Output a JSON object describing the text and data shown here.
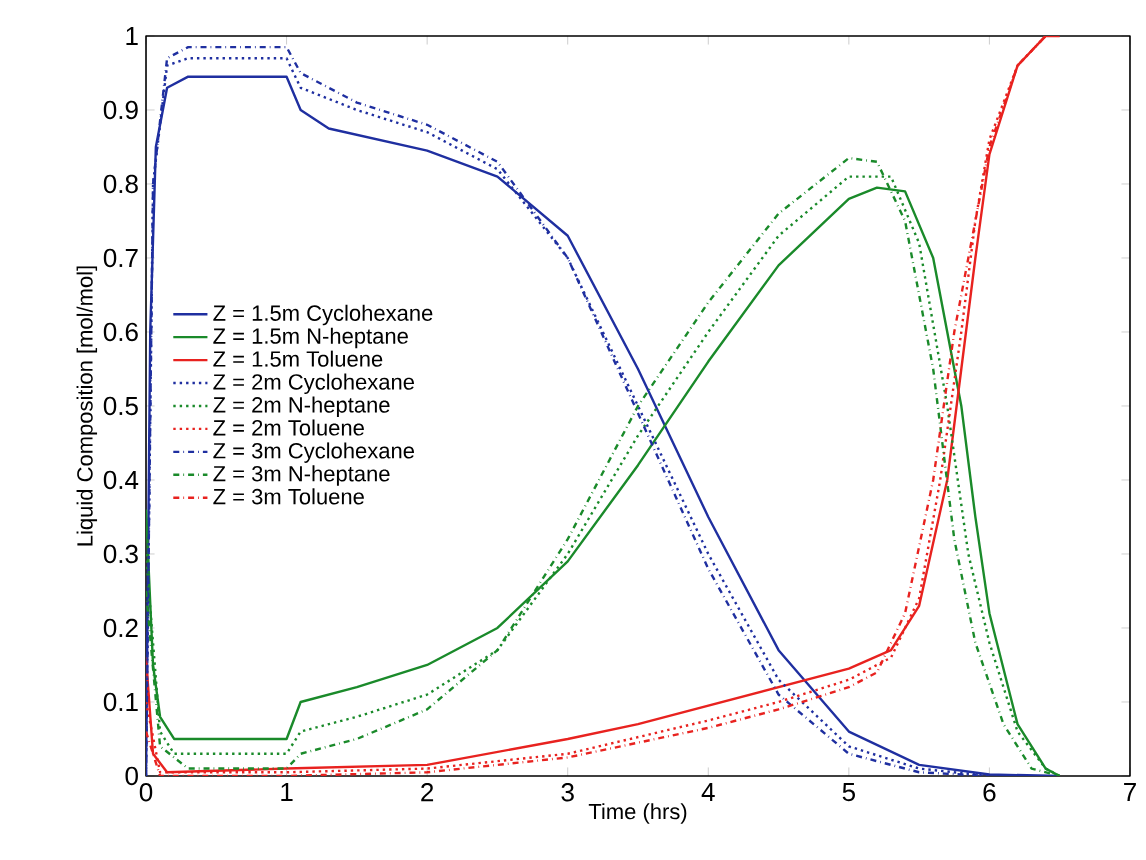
{
  "chart_data": {
    "type": "line",
    "xlabel": "Time (hrs)",
    "ylabel": "Liquid Composition [mol/mol]",
    "xlim": [
      0,
      7
    ],
    "ylim": [
      0,
      1
    ],
    "xticks": [
      0,
      1,
      2,
      3,
      4,
      5,
      6,
      7
    ],
    "yticks": [
      0,
      0.1,
      0.2,
      0.3,
      0.4,
      0.5,
      0.6,
      0.7,
      0.8,
      0.9,
      1
    ],
    "legend": "left",
    "grid": false,
    "marker": "none",
    "series": [
      {
        "name": "Z = 1.5m Cyclohexane",
        "color": "#1f2fa0",
        "line_style": "solid",
        "x": [
          0,
          0.03,
          0.07,
          0.15,
          0.3,
          1,
          1.1,
          1.3,
          2,
          2.5,
          3,
          3.5,
          4,
          4.5,
          5,
          5.5,
          6,
          6.5
        ],
        "values": [
          0,
          0.6,
          0.85,
          0.93,
          0.945,
          0.945,
          0.9,
          0.875,
          0.845,
          0.81,
          0.73,
          0.55,
          0.35,
          0.17,
          0.06,
          0.015,
          0.002,
          0
        ]
      },
      {
        "name": "Z = 1.5m N-heptane",
        "color": "#1a8a2a",
        "line_style": "solid",
        "x": [
          0,
          0.05,
          0.1,
          0.2,
          1,
          1.1,
          1.5,
          2,
          2.5,
          3,
          3.5,
          4,
          4.5,
          5,
          5.2,
          5.4,
          5.6,
          5.8,
          5.9,
          6,
          6.2,
          6.4,
          6.5
        ],
        "values": [
          0.36,
          0.15,
          0.08,
          0.05,
          0.05,
          0.1,
          0.12,
          0.15,
          0.2,
          0.29,
          0.42,
          0.56,
          0.69,
          0.78,
          0.795,
          0.79,
          0.7,
          0.5,
          0.35,
          0.22,
          0.07,
          0.01,
          0
        ]
      },
      {
        "name": "Z = 1.5m Toluene",
        "color": "#e8221f",
        "line_style": "solid",
        "x": [
          0,
          0.05,
          0.15,
          1,
          2,
          3,
          3.5,
          4,
          4.5,
          5,
          5.3,
          5.5,
          5.7,
          5.8,
          5.9,
          6,
          6.2,
          6.4,
          6.5
        ],
        "values": [
          0.16,
          0.03,
          0.005,
          0.01,
          0.015,
          0.05,
          0.07,
          0.095,
          0.12,
          0.145,
          0.17,
          0.23,
          0.4,
          0.55,
          0.7,
          0.84,
          0.96,
          1,
          1
        ]
      },
      {
        "name": "Z = 2m Cyclohexane",
        "color": "#1f2fa0",
        "line_style": "dotted",
        "x": [
          0,
          0.05,
          0.15,
          0.3,
          1,
          1.1,
          1.5,
          2,
          2.5,
          3,
          3.5,
          4,
          4.5,
          5,
          5.5,
          6
        ],
        "values": [
          0,
          0.8,
          0.96,
          0.97,
          0.97,
          0.93,
          0.9,
          0.87,
          0.82,
          0.7,
          0.5,
          0.3,
          0.13,
          0.04,
          0.01,
          0
        ]
      },
      {
        "name": "Z = 2m N-heptane",
        "color": "#1a8a2a",
        "line_style": "dotted",
        "x": [
          0,
          0.1,
          0.2,
          1,
          1.1,
          1.5,
          2,
          2.5,
          3,
          3.5,
          4,
          4.5,
          5,
          5.3,
          5.5,
          5.7,
          5.85,
          6,
          6.2,
          6.4,
          6.5
        ],
        "values": [
          0.3,
          0.06,
          0.03,
          0.03,
          0.06,
          0.08,
          0.11,
          0.17,
          0.3,
          0.46,
          0.6,
          0.73,
          0.81,
          0.81,
          0.72,
          0.5,
          0.3,
          0.18,
          0.06,
          0.01,
          0
        ]
      },
      {
        "name": "Z = 2m Toluene",
        "color": "#e8221f",
        "line_style": "dotted",
        "x": [
          0,
          0.1,
          1,
          2,
          3,
          4,
          4.5,
          5,
          5.3,
          5.5,
          5.65,
          5.8,
          5.9,
          6,
          6.2,
          6.4
        ],
        "values": [
          0.1,
          0.005,
          0.005,
          0.01,
          0.03,
          0.075,
          0.1,
          0.13,
          0.16,
          0.24,
          0.4,
          0.6,
          0.75,
          0.86,
          0.96,
          1
        ]
      },
      {
        "name": "Z = 3m Cyclohexane",
        "color": "#1f2fa0",
        "line_style": "dashdot",
        "x": [
          0,
          0.05,
          0.15,
          0.3,
          1,
          1.1,
          1.5,
          2,
          2.5,
          3,
          3.5,
          4,
          4.5,
          5,
          5.5,
          6
        ],
        "values": [
          0,
          0.8,
          0.97,
          0.985,
          0.985,
          0.95,
          0.91,
          0.88,
          0.83,
          0.7,
          0.49,
          0.28,
          0.11,
          0.03,
          0.005,
          0
        ]
      },
      {
        "name": "Z = 3m N-heptane",
        "color": "#1a8a2a",
        "line_style": "dashdot",
        "x": [
          0,
          0.1,
          0.3,
          1,
          1.1,
          1.5,
          2,
          2.5,
          3,
          3.5,
          4,
          4.5,
          5,
          5.2,
          5.4,
          5.6,
          5.75,
          5.9,
          6.1,
          6.3,
          6.5
        ],
        "values": [
          0.25,
          0.04,
          0.01,
          0.01,
          0.03,
          0.05,
          0.09,
          0.17,
          0.32,
          0.5,
          0.64,
          0.76,
          0.835,
          0.83,
          0.75,
          0.55,
          0.32,
          0.18,
          0.07,
          0.01,
          0
        ]
      },
      {
        "name": "Z = 3m Toluene",
        "color": "#e8221f",
        "line_style": "dashdot",
        "x": [
          0,
          0.1,
          1,
          2,
          3,
          4,
          4.5,
          5,
          5.2,
          5.4,
          5.6,
          5.75,
          5.85,
          6,
          6.2,
          6.4
        ],
        "values": [
          0.06,
          0,
          0,
          0.005,
          0.025,
          0.065,
          0.09,
          0.12,
          0.14,
          0.22,
          0.4,
          0.6,
          0.7,
          0.85,
          0.96,
          1
        ]
      }
    ]
  }
}
